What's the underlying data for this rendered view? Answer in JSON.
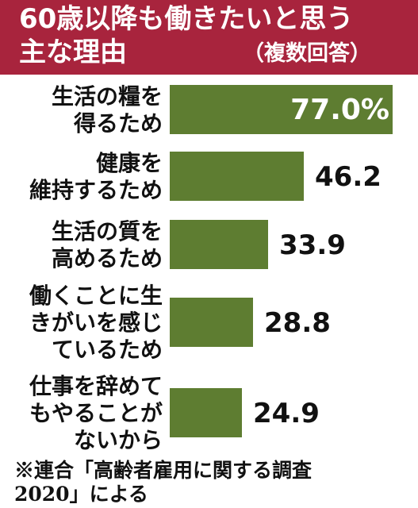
{
  "header": {
    "title_line1": "60歳以降も働きたいと思う",
    "title_line2": "主な理由",
    "subtitle": "（複数回答）",
    "bg_color": "#a8243d"
  },
  "chart_data": {
    "type": "bar",
    "orientation": "horizontal",
    "unit": "%",
    "categories": [
      "生活の糧を得るため",
      "健康を維持するため",
      "生活の質を高めるため",
      "働くことに生きがいを感じているため",
      "仕事を辞めてもやることがないから"
    ],
    "category_label_lines": [
      [
        "生活の糧を",
        "得るため"
      ],
      [
        "健康を",
        "維持するため"
      ],
      [
        "生活の質を",
        "高めるため"
      ],
      [
        "働くことに生",
        "きがいを感じ",
        "ているため"
      ],
      [
        "仕事を辞めて",
        "もやることが",
        "ないから"
      ]
    ],
    "values": [
      77.0,
      46.2,
      33.9,
      28.8,
      24.9
    ],
    "value_labels": [
      "77.0%",
      "46.2",
      "33.9",
      "28.8",
      "24.9"
    ],
    "bar_color": "#5e7d31",
    "xlim": [
      0,
      77.0
    ],
    "grid": false,
    "legend": "none"
  },
  "note": {
    "line1": "※連合「高齢者雇用に関する調査",
    "line2": "2020」による"
  }
}
